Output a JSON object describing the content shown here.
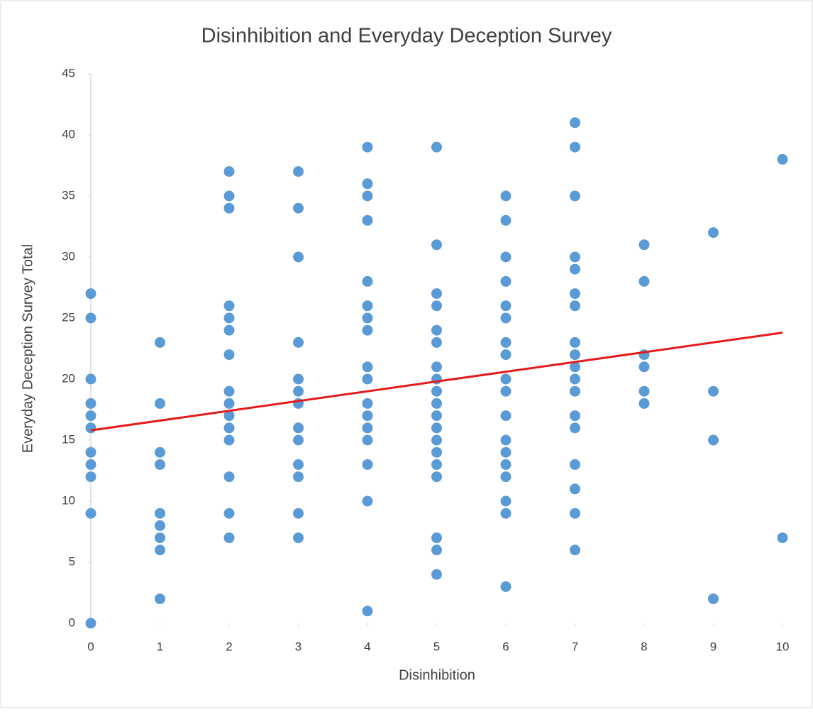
{
  "chart_data": {
    "type": "scatter",
    "title": "Disinhibition and Everyday Deception Survey",
    "x_label": "Disinhibition",
    "y_label": "Everyday Deception Survey Total",
    "color": "#5b9bd5",
    "x": [
      0,
      0,
      0,
      0,
      0,
      0,
      0,
      0,
      0,
      0,
      0,
      1,
      1,
      1,
      1,
      1,
      1,
      1,
      1,
      1,
      2,
      2,
      2,
      2,
      2,
      2,
      2,
      2,
      2,
      2,
      2,
      2,
      2,
      2,
      2,
      3,
      3,
      3,
      3,
      3,
      3,
      3,
      3,
      3,
      3,
      3,
      3,
      3,
      4,
      4,
      4,
      4,
      4,
      4,
      4,
      4,
      4,
      4,
      4,
      4,
      4,
      4,
      4,
      4,
      4,
      5,
      5,
      5,
      5,
      5,
      5,
      5,
      5,
      5,
      5,
      5,
      5,
      5,
      5,
      5,
      5,
      5,
      5,
      5,
      6,
      6,
      6,
      6,
      6,
      6,
      6,
      6,
      6,
      6,
      6,
      6,
      6,
      6,
      6,
      6,
      6,
      6,
      7,
      7,
      7,
      7,
      7,
      7,
      7,
      7,
      7,
      7,
      7,
      7,
      7,
      7,
      7,
      7,
      7,
      7,
      8,
      8,
      8,
      8,
      8,
      8,
      9,
      9,
      9,
      9,
      10,
      10
    ],
    "y": [
      27,
      25,
      20,
      18,
      17,
      16,
      14,
      13,
      12,
      9,
      0,
      23,
      18,
      14,
      13,
      9,
      8,
      7,
      6,
      2,
      37,
      35,
      34,
      26,
      25,
      24,
      22,
      19,
      18,
      17,
      16,
      15,
      12,
      9,
      7,
      37,
      34,
      30,
      23,
      20,
      19,
      18,
      16,
      15,
      13,
      12,
      9,
      7,
      39,
      36,
      35,
      33,
      28,
      26,
      25,
      24,
      21,
      20,
      18,
      17,
      16,
      15,
      13,
      10,
      1,
      39,
      31,
      27,
      26,
      24,
      23,
      21,
      20,
      19,
      18,
      17,
      16,
      15,
      14,
      13,
      12,
      7,
      6,
      4,
      35,
      33,
      30,
      28,
      26,
      25,
      23,
      22,
      20,
      19,
      17,
      15,
      14,
      13,
      12,
      10,
      9,
      3,
      41,
      39,
      35,
      30,
      29,
      27,
      26,
      23,
      22,
      21,
      20,
      19,
      17,
      16,
      13,
      11,
      9,
      6,
      31,
      28,
      22,
      21,
      19,
      18,
      32,
      19,
      15,
      2,
      38,
      7
    ],
    "trendline": {
      "x": [
        0,
        10
      ],
      "y": [
        15.8,
        23.8
      ],
      "color": "#e31a1c"
    },
    "xlim": [
      0,
      10
    ],
    "xticks": [
      0,
      1,
      2,
      3,
      4,
      5,
      6,
      7,
      8,
      9,
      10
    ],
    "ylim": [
      0,
      45
    ],
    "yticks": [
      0,
      5,
      10,
      15,
      20,
      25,
      30,
      35,
      40,
      45
    ]
  }
}
